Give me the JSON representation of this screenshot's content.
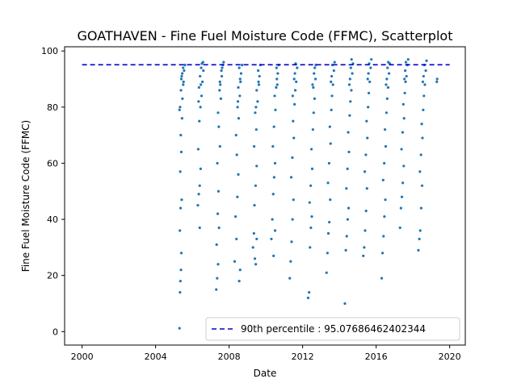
{
  "chart_data": {
    "type": "scatter",
    "title": "GOATHAVEN - Fine Fuel Moisture Code (FFMC), Scatterplot",
    "xlabel": "Date",
    "ylabel": "Fine Fuel Moisture Code (FFMC)",
    "xlim": [
      1999.05,
      2020.85
    ],
    "ylim": [
      -4.8,
      101.5
    ],
    "x_ticks": [
      2000,
      2004,
      2008,
      2012,
      2016,
      2020
    ],
    "x_tick_labels": [
      "2000",
      "2004",
      "2008",
      "2012",
      "2016",
      "2020"
    ],
    "y_ticks": [
      0,
      20,
      40,
      60,
      80,
      100
    ],
    "y_tick_labels": [
      "0",
      "20",
      "40",
      "60",
      "80",
      "100"
    ],
    "grid": false,
    "legend_position": "lower-right",
    "point_color": "#1f77b4",
    "reference_line": {
      "label": "90th percentile : 95.07686462402344",
      "value": 95.07686462402344,
      "x_range": [
        2000,
        2020
      ],
      "color": "#0000cc",
      "style": "dashed"
    },
    "series": [
      {
        "points": [
          [
            2005.3,
            1.2
          ],
          [
            2005.33,
            14
          ],
          [
            2005.35,
            18
          ],
          [
            2005.38,
            22
          ],
          [
            2005.4,
            28
          ],
          [
            2005.32,
            36
          ],
          [
            2005.36,
            44
          ],
          [
            2005.42,
            47
          ],
          [
            2005.34,
            57
          ],
          [
            2005.4,
            64
          ],
          [
            2005.37,
            70
          ],
          [
            2005.44,
            76
          ],
          [
            2005.33,
            80
          ],
          [
            2005.46,
            83
          ],
          [
            2005.38,
            86
          ],
          [
            2005.5,
            88
          ],
          [
            2005.4,
            90
          ],
          [
            2005.45,
            92
          ],
          [
            2005.55,
            93
          ],
          [
            2005.5,
            94
          ],
          [
            2005.6,
            95
          ],
          [
            2005.42,
            91
          ],
          [
            2005.52,
            89
          ],
          [
            2005.3,
            79
          ],
          [
            2006.3,
            45
          ],
          [
            2006.35,
            49
          ],
          [
            2006.4,
            52
          ],
          [
            2006.45,
            58
          ],
          [
            2006.32,
            65
          ],
          [
            2006.38,
            75
          ],
          [
            2006.44,
            80
          ],
          [
            2006.5,
            84
          ],
          [
            2006.36,
            87
          ],
          [
            2006.55,
            89
          ],
          [
            2006.42,
            91
          ],
          [
            2006.6,
            93
          ],
          [
            2006.48,
            94
          ],
          [
            2006.52,
            95.5
          ],
          [
            2006.58,
            96
          ],
          [
            2006.34,
            82
          ],
          [
            2006.46,
            88
          ],
          [
            2006.4,
            37
          ],
          [
            2007.3,
            15
          ],
          [
            2007.35,
            19
          ],
          [
            2007.4,
            24
          ],
          [
            2007.32,
            31
          ],
          [
            2007.45,
            37
          ],
          [
            2007.38,
            42
          ],
          [
            2007.42,
            50
          ],
          [
            2007.36,
            60
          ],
          [
            2007.5,
            66
          ],
          [
            2007.44,
            73
          ],
          [
            2007.4,
            78
          ],
          [
            2007.55,
            83
          ],
          [
            2007.48,
            86
          ],
          [
            2007.52,
            88
          ],
          [
            2007.6,
            91
          ],
          [
            2007.58,
            93
          ],
          [
            2007.62,
            94
          ],
          [
            2007.66,
            95
          ],
          [
            2007.7,
            96
          ],
          [
            2007.5,
            89
          ],
          [
            2008.3,
            25
          ],
          [
            2008.4,
            33
          ],
          [
            2008.55,
            18
          ],
          [
            2008.6,
            22
          ],
          [
            2008.35,
            41
          ],
          [
            2008.45,
            48
          ],
          [
            2008.5,
            56
          ],
          [
            2008.42,
            63
          ],
          [
            2008.38,
            70
          ],
          [
            2008.52,
            76
          ],
          [
            2008.46,
            80
          ],
          [
            2008.58,
            84
          ],
          [
            2008.5,
            87
          ],
          [
            2008.6,
            90
          ],
          [
            2008.65,
            92
          ],
          [
            2008.55,
            94
          ],
          [
            2008.7,
            95
          ],
          [
            2008.62,
            89
          ],
          [
            2008.48,
            82
          ],
          [
            2009.3,
            30
          ],
          [
            2009.35,
            35
          ],
          [
            2009.4,
            26
          ],
          [
            2009.45,
            24
          ],
          [
            2009.5,
            33
          ],
          [
            2009.38,
            45
          ],
          [
            2009.44,
            52
          ],
          [
            2009.5,
            59
          ],
          [
            2009.36,
            66
          ],
          [
            2009.48,
            72
          ],
          [
            2009.42,
            78
          ],
          [
            2009.55,
            82
          ],
          [
            2009.5,
            86
          ],
          [
            2009.6,
            89
          ],
          [
            2009.65,
            91
          ],
          [
            2009.58,
            93
          ],
          [
            2009.7,
            95
          ],
          [
            2009.62,
            88
          ],
          [
            2009.46,
            80
          ],
          [
            2010.3,
            33
          ],
          [
            2010.35,
            40
          ],
          [
            2010.4,
            49
          ],
          [
            2010.45,
            55
          ],
          [
            2010.5,
            60
          ],
          [
            2010.38,
            66
          ],
          [
            2010.44,
            73
          ],
          [
            2010.52,
            79
          ],
          [
            2010.48,
            84
          ],
          [
            2010.56,
            87
          ],
          [
            2010.6,
            90
          ],
          [
            2010.65,
            92
          ],
          [
            2010.58,
            94
          ],
          [
            2010.7,
            95
          ],
          [
            2010.62,
            88
          ],
          [
            2010.42,
            27
          ],
          [
            2010.5,
            36
          ],
          [
            2011.3,
            19
          ],
          [
            2011.35,
            25
          ],
          [
            2011.4,
            32
          ],
          [
            2011.45,
            40
          ],
          [
            2011.5,
            47
          ],
          [
            2011.38,
            55
          ],
          [
            2011.44,
            62
          ],
          [
            2011.52,
            69
          ],
          [
            2011.48,
            75
          ],
          [
            2011.56,
            81
          ],
          [
            2011.6,
            86
          ],
          [
            2011.65,
            89
          ],
          [
            2011.58,
            92
          ],
          [
            2011.7,
            94
          ],
          [
            2011.62,
            95.5
          ],
          [
            2011.54,
            90
          ],
          [
            2011.46,
            84
          ],
          [
            2012.3,
            12
          ],
          [
            2012.35,
            14
          ],
          [
            2012.4,
            30
          ],
          [
            2012.45,
            37
          ],
          [
            2012.5,
            41
          ],
          [
            2012.38,
            46
          ],
          [
            2012.44,
            52
          ],
          [
            2012.52,
            58
          ],
          [
            2012.48,
            65
          ],
          [
            2012.56,
            72
          ],
          [
            2012.6,
            78
          ],
          [
            2012.65,
            83
          ],
          [
            2012.58,
            87
          ],
          [
            2012.7,
            90
          ],
          [
            2012.62,
            92
          ],
          [
            2012.66,
            94
          ],
          [
            2012.72,
            95
          ],
          [
            2012.54,
            88
          ],
          [
            2013.3,
            21
          ],
          [
            2013.35,
            28
          ],
          [
            2013.4,
            35
          ],
          [
            2013.45,
            39
          ],
          [
            2013.5,
            47
          ],
          [
            2013.38,
            53
          ],
          [
            2013.44,
            60
          ],
          [
            2013.52,
            67
          ],
          [
            2013.48,
            73
          ],
          [
            2013.56,
            79
          ],
          [
            2013.6,
            84
          ],
          [
            2013.65,
            88
          ],
          [
            2013.58,
            91
          ],
          [
            2013.7,
            93
          ],
          [
            2013.62,
            95
          ],
          [
            2013.74,
            96
          ],
          [
            2013.54,
            89
          ],
          [
            2014.3,
            10
          ],
          [
            2014.35,
            29
          ],
          [
            2014.4,
            34
          ],
          [
            2014.45,
            40
          ],
          [
            2014.5,
            44
          ],
          [
            2014.38,
            51
          ],
          [
            2014.44,
            58
          ],
          [
            2014.52,
            64
          ],
          [
            2014.48,
            71
          ],
          [
            2014.56,
            77
          ],
          [
            2014.6,
            82
          ],
          [
            2014.65,
            86
          ],
          [
            2014.58,
            90
          ],
          [
            2014.7,
            92
          ],
          [
            2014.62,
            94
          ],
          [
            2014.74,
            95.5
          ],
          [
            2014.66,
            97
          ],
          [
            2014.54,
            88
          ],
          [
            2015.3,
            27
          ],
          [
            2015.35,
            30
          ],
          [
            2015.4,
            36
          ],
          [
            2015.45,
            43
          ],
          [
            2015.5,
            51
          ],
          [
            2015.38,
            57
          ],
          [
            2015.44,
            63
          ],
          [
            2015.52,
            69
          ],
          [
            2015.48,
            75
          ],
          [
            2015.56,
            80
          ],
          [
            2015.6,
            85
          ],
          [
            2015.65,
            89
          ],
          [
            2015.58,
            92
          ],
          [
            2015.7,
            94
          ],
          [
            2015.62,
            95.5
          ],
          [
            2015.74,
            97
          ],
          [
            2015.54,
            90
          ],
          [
            2016.3,
            19
          ],
          [
            2016.35,
            28
          ],
          [
            2016.4,
            34
          ],
          [
            2016.45,
            41
          ],
          [
            2016.5,
            47
          ],
          [
            2016.38,
            54
          ],
          [
            2016.44,
            60
          ],
          [
            2016.52,
            66
          ],
          [
            2016.48,
            72
          ],
          [
            2016.56,
            78
          ],
          [
            2016.6,
            83
          ],
          [
            2016.65,
            87
          ],
          [
            2016.58,
            90
          ],
          [
            2016.7,
            92
          ],
          [
            2016.62,
            94
          ],
          [
            2016.74,
            95.5
          ],
          [
            2016.66,
            96
          ],
          [
            2016.54,
            88
          ],
          [
            2017.3,
            37
          ],
          [
            2017.35,
            44
          ],
          [
            2017.4,
            48
          ],
          [
            2017.45,
            53
          ],
          [
            2017.5,
            59
          ],
          [
            2017.38,
            65
          ],
          [
            2017.44,
            71
          ],
          [
            2017.52,
            76
          ],
          [
            2017.48,
            81
          ],
          [
            2017.56,
            85
          ],
          [
            2017.6,
            89
          ],
          [
            2017.65,
            91
          ],
          [
            2017.58,
            93
          ],
          [
            2017.7,
            95
          ],
          [
            2017.62,
            96
          ],
          [
            2017.74,
            97
          ],
          [
            2017.54,
            90
          ],
          [
            2018.3,
            29
          ],
          [
            2018.35,
            33
          ],
          [
            2018.4,
            36
          ],
          [
            2018.45,
            44
          ],
          [
            2018.5,
            52
          ],
          [
            2018.38,
            57
          ],
          [
            2018.44,
            63
          ],
          [
            2018.52,
            69
          ],
          [
            2018.48,
            74
          ],
          [
            2018.56,
            79
          ],
          [
            2018.6,
            84
          ],
          [
            2018.65,
            88
          ],
          [
            2018.58,
            91
          ],
          [
            2018.7,
            93
          ],
          [
            2018.62,
            95
          ],
          [
            2018.74,
            96.5
          ],
          [
            2018.54,
            89
          ],
          [
            2019.3,
            89
          ],
          [
            2019.32,
            90
          ]
        ]
      }
    ]
  }
}
